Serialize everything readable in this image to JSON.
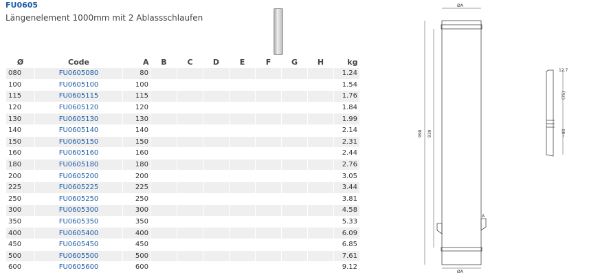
{
  "header": {
    "code": "FU0605",
    "title": "Längenelement 1000mm mit 2 Ablassschlaufen"
  },
  "table": {
    "columns": [
      "Ø",
      "Code",
      "A",
      "B",
      "C",
      "D",
      "E",
      "F",
      "G",
      "H",
      "kg"
    ],
    "rows": [
      [
        "080",
        "FU0605080",
        "80",
        "1.24"
      ],
      [
        "100",
        "FU0605100",
        "100",
        "1.54"
      ],
      [
        "115",
        "FU0605115",
        "115",
        "1.76"
      ],
      [
        "120",
        "FU0605120",
        "120",
        "1.84"
      ],
      [
        "130",
        "FU0605130",
        "130",
        "1.99"
      ],
      [
        "140",
        "FU0605140",
        "140",
        "2.14"
      ],
      [
        "150",
        "FU0605150",
        "150",
        "2.31"
      ],
      [
        "160",
        "FU0605160",
        "160",
        "2.44"
      ],
      [
        "180",
        "FU0605180",
        "180",
        "2.76"
      ],
      [
        "200",
        "FU0605200",
        "200",
        "3.05"
      ],
      [
        "225",
        "FU0605225",
        "225",
        "3.44"
      ],
      [
        "250",
        "FU0605250",
        "250",
        "3.81"
      ],
      [
        "300",
        "FU0605300",
        "300",
        "4.58"
      ],
      [
        "350",
        "FU0605350",
        "350",
        "5.33"
      ],
      [
        "400",
        "FU0605400",
        "400",
        "6.09"
      ],
      [
        "450",
        "FU0605450",
        "450",
        "6.85"
      ],
      [
        "500",
        "FU0605500",
        "500",
        "7.61"
      ],
      [
        "600",
        "FU0605600",
        "600",
        "9.12"
      ]
    ]
  },
  "drawing": {
    "diameter_top": "ØA",
    "diameter_bottom": "ØA",
    "total_length": "998",
    "inner_length": "939",
    "detail_ref": "A",
    "detail_width": "12.7",
    "detail_height": "(75)",
    "detail_offset": "~80"
  }
}
